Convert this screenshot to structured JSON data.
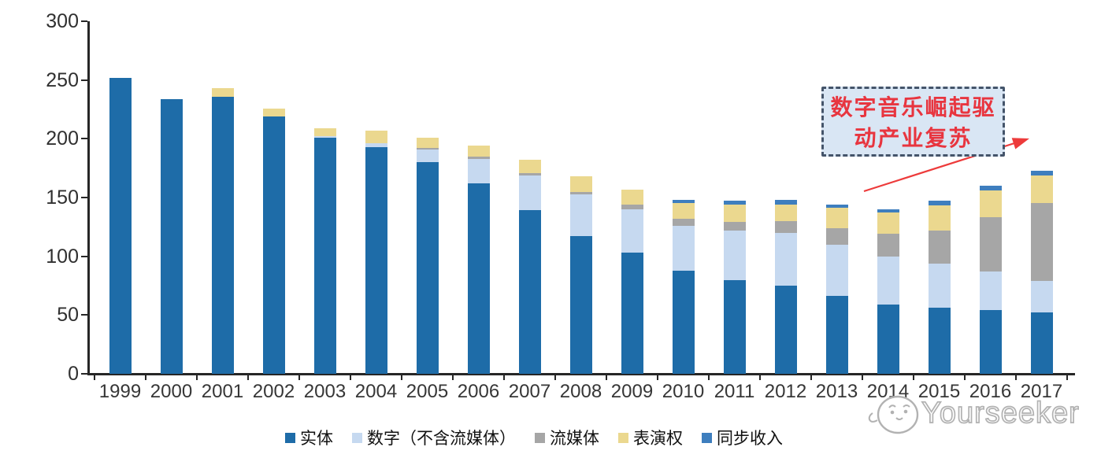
{
  "chart_data": {
    "type": "bar",
    "stacked": true,
    "title": "",
    "xlabel": "",
    "ylabel": "",
    "categories": [
      "1999",
      "2000",
      "2001",
      "2002",
      "2003",
      "2004",
      "2005",
      "2006",
      "2007",
      "2008",
      "2009",
      "2010",
      "2011",
      "2012",
      "2013",
      "2014",
      "2015",
      "2016",
      "2017"
    ],
    "series": [
      {
        "name": "实体",
        "color": "#1e6ca8",
        "values": [
          252,
          234,
          236,
          219,
          201,
          193,
          180,
          162,
          139,
          117,
          103,
          88,
          80,
          75,
          66,
          59,
          56,
          54,
          52
        ]
      },
      {
        "name": "数字（不含流媒体）",
        "color": "#c6d9f0",
        "values": [
          0,
          0,
          0,
          0,
          1,
          3,
          11,
          21,
          30,
          36,
          37,
          38,
          42,
          45,
          44,
          41,
          38,
          33,
          27
        ]
      },
      {
        "name": "流媒体",
        "color": "#a6a6a6",
        "values": [
          0,
          0,
          0,
          0,
          0,
          0,
          1,
          2,
          2,
          2,
          4,
          6,
          7,
          10,
          14,
          19,
          28,
          46,
          66
        ]
      },
      {
        "name": "表演权",
        "color": "#ebd88f",
        "values": [
          0,
          0,
          7,
          7,
          7,
          11,
          9,
          9,
          11,
          13,
          13,
          13,
          15,
          14,
          17,
          18,
          21,
          23,
          24
        ]
      },
      {
        "name": "同步收入",
        "color": "#3e7ebe",
        "values": [
          0,
          0,
          0,
          0,
          0,
          0,
          0,
          0,
          0,
          0,
          0,
          3,
          3,
          4,
          3,
          3,
          4,
          4,
          4
        ]
      }
    ],
    "ylim": [
      0,
      300
    ],
    "yticks": [
      0,
      50,
      100,
      150,
      200,
      250,
      300
    ],
    "grid": false,
    "legend_position": "bottom"
  },
  "annotation": {
    "line1": "数字音乐崛起驱",
    "line2": "动产业复苏",
    "text_color": "#e8353f",
    "border_color": "#44546a",
    "fill_color": "#d9e6f4",
    "arrow_color": "#ed3b3b"
  },
  "watermark": {
    "text": "Yourseeker"
  }
}
